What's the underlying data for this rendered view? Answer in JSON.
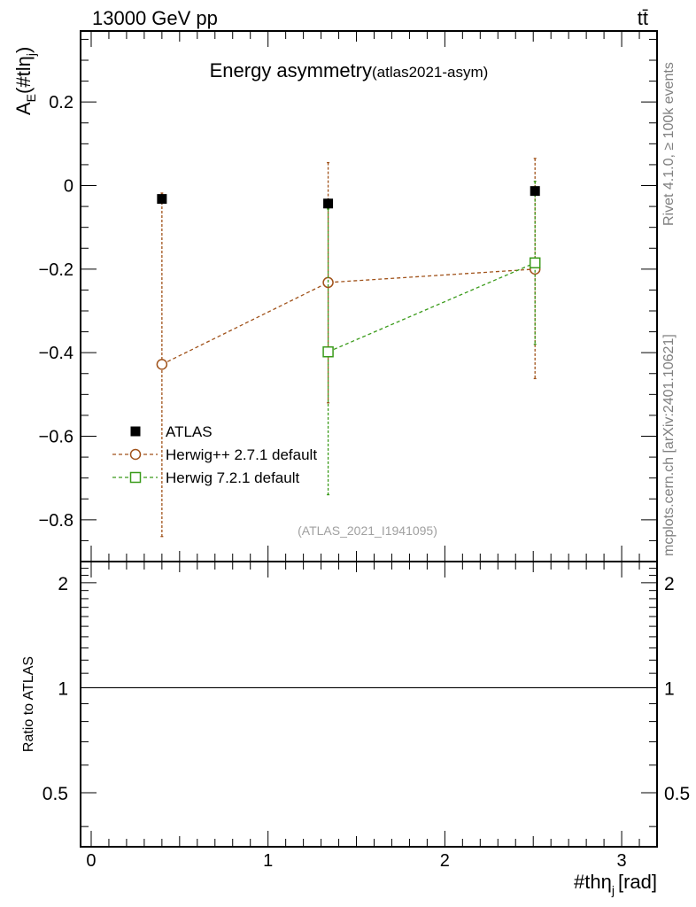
{
  "header": {
    "left_label": "13000 GeV pp",
    "right_label": "tt̄"
  },
  "side_labels": {
    "rivet": "Rivet 4.1.0, ≥ 100k events",
    "mcplots": "mcplots.cern.ch [arXiv:2401.10621]"
  },
  "chart_data": [
    {
      "type": "line",
      "title": "Energy asymmetry",
      "subtitle": "(atlas2021-asym)",
      "watermark": "(ATLAS_2021_I1941095)",
      "ylabel": "A_E(#tlη_j)",
      "ylabel_main": "A",
      "ylabel_sub_e": "E",
      "ylabel_paren": "(#tlη",
      "ylabel_sub_j": "j",
      "ylabel_close": ")",
      "xlim": [
        -0.06,
        3.2
      ],
      "ylim": [
        -0.9,
        0.37
      ],
      "yticks": [
        0.2,
        0,
        -0.2,
        -0.4,
        -0.6,
        -0.8
      ],
      "ytick_labels": [
        "0.2",
        "0",
        "−0.2",
        "−0.4",
        "−0.6",
        "−0.8"
      ],
      "legend_position": "lower-left",
      "series": [
        {
          "name": "ATLAS",
          "marker": "filled-square",
          "color": "#000000",
          "x": [
            0.4,
            1.34,
            2.51
          ],
          "y": [
            -0.032,
            -0.043,
            -0.013
          ],
          "yerr_low": [
            0.012,
            0.012,
            0.01
          ],
          "yerr_high": [
            0.012,
            0.012,
            0.01
          ]
        },
        {
          "name": "Herwig++ 2.7.1 default",
          "marker": "open-circle",
          "color": "#a0521a",
          "x": [
            0.4,
            1.34,
            2.51
          ],
          "y": [
            -0.428,
            -0.232,
            -0.2
          ],
          "yerr_low": [
            0.412,
            0.288,
            0.262
          ],
          "yerr_high": [
            0.41,
            0.287,
            0.265
          ]
        },
        {
          "name": "Herwig 7.2.1 default",
          "marker": "open-square",
          "color": "#3a9b1a",
          "x": [
            1.34,
            2.51
          ],
          "y": [
            -0.398,
            -0.185
          ],
          "yerr_low": [
            0.342,
            0.195
          ],
          "yerr_high": [
            0.342,
            0.195
          ]
        }
      ]
    },
    {
      "type": "line",
      "ylabel": "Ratio to ATLAS",
      "xlabel": "#thη_j [rad]",
      "xlabel_main": "#thη",
      "xlabel_sub": "j",
      "xlabel_unit": "[rad]",
      "xlim": [
        -0.06,
        3.2
      ],
      "ylim": [
        0.35,
        2.3
      ],
      "yticks": [
        2,
        1,
        0.5
      ],
      "ytick_labels": [
        "2",
        "1",
        "0.5"
      ],
      "xticks": [
        0,
        1,
        2,
        3
      ],
      "xtick_labels": [
        "0",
        "1",
        "2",
        "3"
      ],
      "reference_line": 1
    }
  ]
}
